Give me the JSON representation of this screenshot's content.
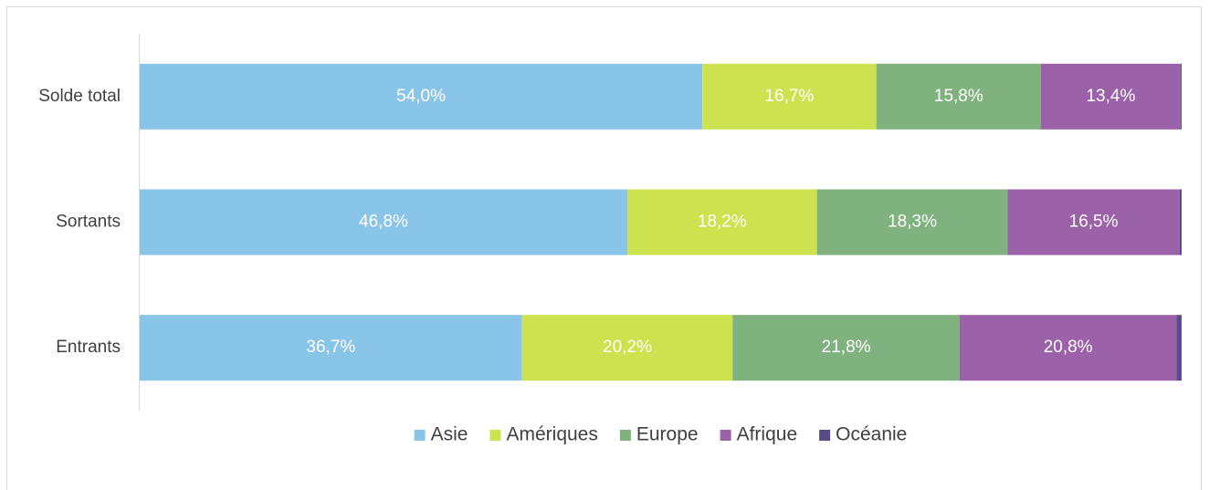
{
  "chart_data": {
    "type": "bar",
    "orientation": "horizontal",
    "stacked": true,
    "categories": [
      "Solde total",
      "Sortants",
      "Entrants"
    ],
    "xlim": [
      0,
      100
    ],
    "series": [
      {
        "name": "Asie",
        "color": "#89c5e8",
        "values": [
          54.0,
          46.8,
          36.7
        ],
        "value_labels": [
          "54,0%",
          "46,8%",
          "36,7%"
        ]
      },
      {
        "name": "Amériques",
        "color": "#cce24e",
        "values": [
          16.7,
          18.2,
          20.2
        ],
        "value_labels": [
          "16,7%",
          "18,2%",
          "20,2%"
        ]
      },
      {
        "name": "Europe",
        "color": "#7fb27e",
        "values": [
          15.8,
          18.3,
          21.8
        ],
        "value_labels": [
          "15,8%",
          "18,3%",
          "21,8%"
        ]
      },
      {
        "name": "Afrique",
        "color": "#9b62a9",
        "values": [
          13.4,
          16.5,
          20.8
        ],
        "value_labels": [
          "13,4%",
          "16,5%",
          "20,8%"
        ]
      },
      {
        "name": "Océanie",
        "color": "#5b4a8a",
        "values": [
          0.1,
          0.2,
          0.5
        ]
      }
    ],
    "legend": "bottom"
  }
}
